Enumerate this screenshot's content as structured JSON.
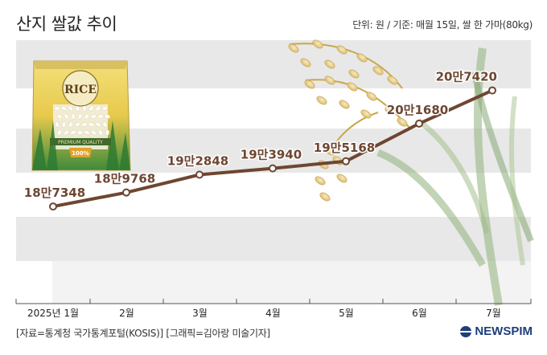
{
  "title": "산지 쌀값 추이",
  "unit_note": "단위: 원 / 기준: 매월 15일, 쌀 한 가마(80kg)",
  "source": "[자료=통계청 국가통계포털(KOSIS)] [그래픽=김아랑 미술기자]",
  "brand": "NEWSPIM",
  "package": {
    "brand": "RICE",
    "tag": "PREMIUM QUALITY",
    "badge": "100%"
  },
  "colors": {
    "line": "#6e4631",
    "band": "#e8e8e8",
    "text": "#222222",
    "brand": "#1d3f7a"
  },
  "chart_data": {
    "type": "line",
    "categories": [
      "2025년 1월",
      "2월",
      "3월",
      "4월",
      "5월",
      "6월",
      "7월"
    ],
    "values": [
      187348,
      189768,
      192848,
      193940,
      195168,
      201680,
      207420
    ],
    "value_labels": [
      "18만7348",
      "18만9768",
      "19만2848",
      "19만3940",
      "19만5168",
      "20만1680",
      "20만7420"
    ],
    "ylim": [
      180000,
      210000
    ],
    "grid": false
  }
}
